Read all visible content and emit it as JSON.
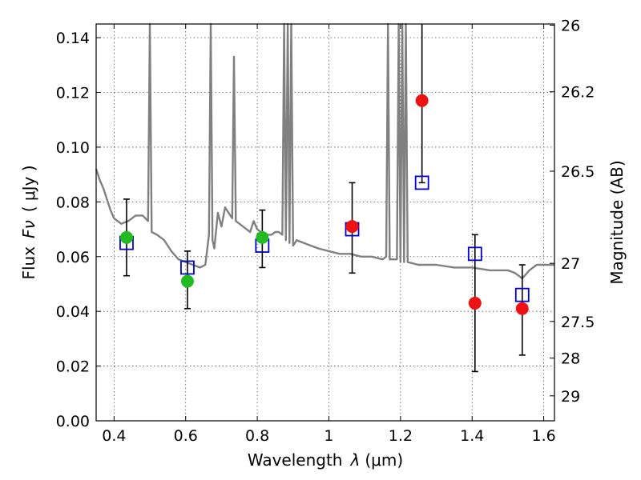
{
  "chart_data": {
    "type": "scatter",
    "xlabel": "Wavelength",
    "xlabel_symbol": "λ",
    "xlabel_unit": "(μm)",
    "ylabel": "Flux",
    "ylabel_symbol": "Fν",
    "ylabel_unit": "( μJy )",
    "y2label": "Magnitude (AB)",
    "xlim": [
      0.35,
      1.63
    ],
    "ylim": [
      0.0,
      0.145
    ],
    "grid": true,
    "x_ticks": [
      0.4,
      0.6,
      0.8,
      1.0,
      1.2,
      1.4,
      1.6
    ],
    "x_tick_labels": [
      "0.4",
      "0.6",
      "0.8",
      "1",
      "1.2",
      "1.4",
      "1.6"
    ],
    "y_ticks": [
      0.0,
      0.02,
      0.04,
      0.06,
      0.08,
      0.1,
      0.12,
      0.14
    ],
    "y_tick_labels": [
      "0.00",
      "0.02",
      "0.04",
      "0.06",
      "0.08",
      "0.10",
      "0.12",
      "0.14"
    ],
    "mag_ticks": [
      26,
      26.2,
      26.5,
      27,
      27.5,
      28,
      29
    ],
    "mag_tick_labels": [
      "26",
      "26.2",
      "26.5",
      "27",
      "27.5",
      "28",
      "29"
    ],
    "colors": {
      "model": "#808080",
      "observed_green": "#22bb22",
      "observed_red": "#ee1111",
      "model_box": "#0000cc",
      "errorbar": "#000000",
      "grid": "#555555"
    },
    "series": [
      {
        "name": "model spectrum",
        "kind": "line",
        "x": [
          0.35,
          0.36,
          0.37,
          0.38,
          0.39,
          0.4,
          0.42,
          0.44,
          0.46,
          0.48,
          0.495,
          0.5,
          0.505,
          0.52,
          0.54,
          0.56,
          0.58,
          0.6,
          0.62,
          0.64,
          0.655,
          0.665,
          0.67,
          0.675,
          0.68,
          0.69,
          0.7,
          0.71,
          0.72,
          0.73,
          0.735,
          0.74,
          0.75,
          0.76,
          0.77,
          0.78,
          0.79,
          0.8,
          0.81,
          0.82,
          0.83,
          0.84,
          0.85,
          0.86,
          0.87,
          0.875,
          0.88,
          0.885,
          0.89,
          0.895,
          0.9,
          0.91,
          0.93,
          0.95,
          0.97,
          1.0,
          1.03,
          1.06,
          1.09,
          1.12,
          1.15,
          1.16,
          1.165,
          1.17,
          1.19,
          1.195,
          1.2,
          1.205,
          1.21,
          1.215,
          1.22,
          1.25,
          1.3,
          1.35,
          1.4,
          1.45,
          1.5,
          1.52,
          1.54,
          1.56,
          1.58,
          1.6,
          1.63
        ],
        "y": [
          0.092,
          0.088,
          0.085,
          0.081,
          0.077,
          0.074,
          0.072,
          0.073,
          0.075,
          0.075,
          0.073,
          0.145,
          0.069,
          0.068,
          0.066,
          0.062,
          0.059,
          0.058,
          0.057,
          0.056,
          0.057,
          0.068,
          0.145,
          0.066,
          0.063,
          0.076,
          0.071,
          0.078,
          0.076,
          0.074,
          0.133,
          0.073,
          0.072,
          0.071,
          0.07,
          0.069,
          0.073,
          0.07,
          0.069,
          0.068,
          0.068,
          0.068,
          0.069,
          0.069,
          0.068,
          0.145,
          0.066,
          0.145,
          0.065,
          0.145,
          0.064,
          0.066,
          0.065,
          0.064,
          0.063,
          0.062,
          0.061,
          0.061,
          0.06,
          0.06,
          0.059,
          0.06,
          0.145,
          0.059,
          0.059,
          0.145,
          0.058,
          0.145,
          0.058,
          0.145,
          0.058,
          0.057,
          0.057,
          0.056,
          0.056,
          0.055,
          0.055,
          0.054,
          0.052,
          0.055,
          0.057,
          0.057,
          0.057
        ]
      },
      {
        "name": "model photometry",
        "kind": "open-square",
        "x": [
          0.435,
          0.605,
          0.814,
          1.065,
          1.26,
          1.408,
          1.54
        ],
        "y": [
          0.065,
          0.056,
          0.064,
          0.07,
          0.087,
          0.061,
          0.046
        ]
      },
      {
        "name": "observed flux",
        "kind": "errorbar",
        "x": [
          0.435,
          0.605,
          0.814,
          1.065,
          1.26,
          1.408,
          1.54
        ],
        "y": [
          0.067,
          0.051,
          0.067,
          0.071,
          0.117,
          0.043,
          0.041
        ],
        "y_low": [
          0.053,
          0.041,
          0.056,
          0.054,
          0.087,
          0.018,
          0.024
        ],
        "y_high": [
          0.081,
          0.062,
          0.077,
          0.087,
          0.145,
          0.068,
          0.057
        ],
        "point_colors": [
          "green",
          "green",
          "green",
          "red",
          "red",
          "red",
          "red"
        ]
      }
    ]
  }
}
